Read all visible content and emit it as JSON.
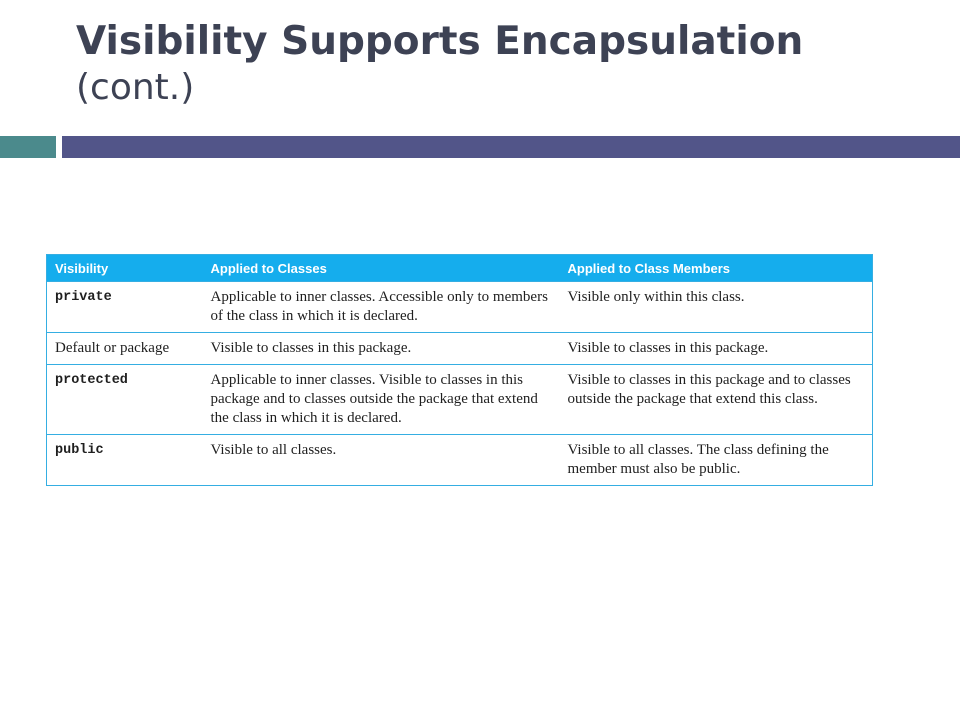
{
  "slide": {
    "title": "Visibility Supports Encapsulation",
    "subtitle": "(cont.)"
  },
  "colors": {
    "title": "#3d4254",
    "accent_teal": "#4b8a8c",
    "accent_indigo": "#525589",
    "table_header": "#15aded",
    "table_border": "#35aee2"
  },
  "table": {
    "headers": [
      "Visibility",
      "Applied to Classes",
      "Applied to Class Members"
    ],
    "rows": [
      {
        "visibility": "private",
        "classes": "Applicable to inner classes. Accessible only to members of the class in which it is declared.",
        "members": "Visible only within this class."
      },
      {
        "visibility": "Default or package",
        "classes": "Visible to classes in this package.",
        "members": "Visible to classes in this package."
      },
      {
        "visibility": "protected",
        "classes": "Applicable to inner classes. Visible to classes in this package and to classes outside the package that extend the class in which it is declared.",
        "members": "Visible to classes in this package and to classes outside the package that extend this class."
      },
      {
        "visibility": "public",
        "classes": "Visible to all classes.",
        "members": "Visible to all classes. The class defining the member must also be public."
      }
    ]
  }
}
